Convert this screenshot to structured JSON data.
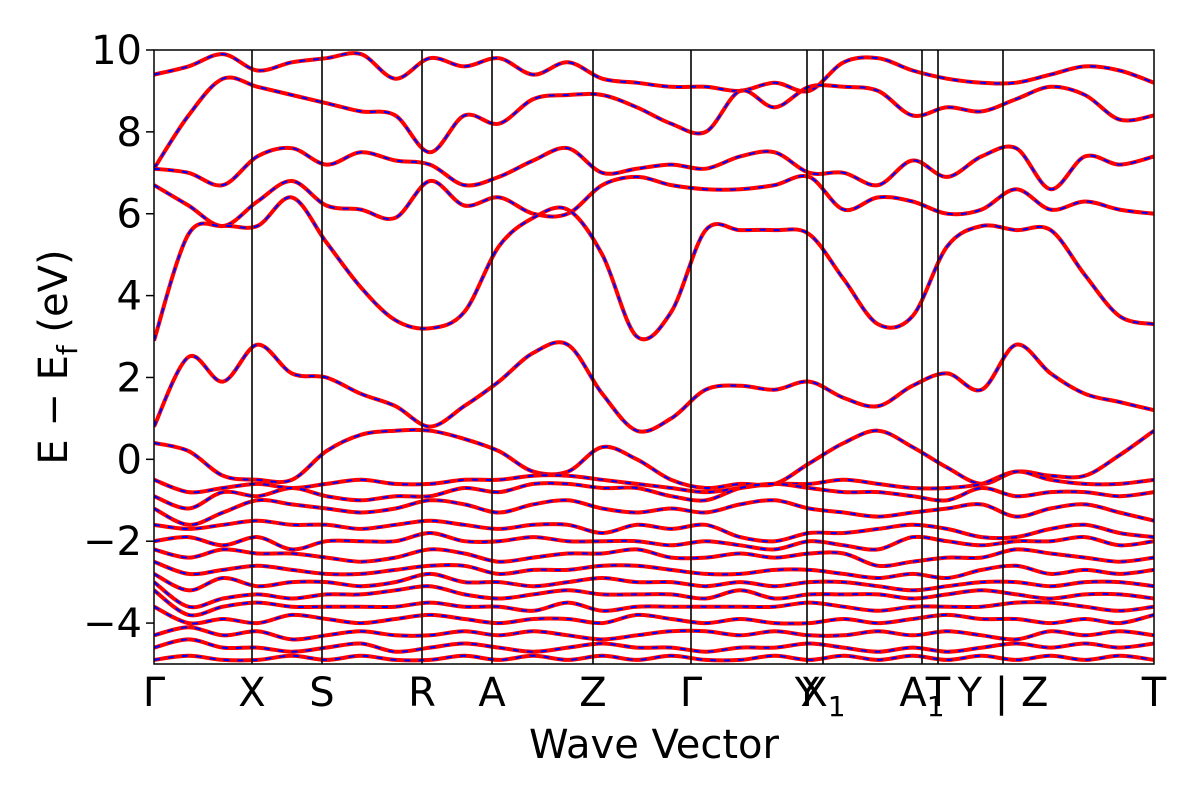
{
  "chart_data": {
    "type": "line",
    "xlabel": "Wave Vector",
    "ylabel": "E − E",
    "ylabel_sub": "f",
    "ylabel_unit": " (eV)",
    "ylim": [
      -5,
      10
    ],
    "yticks": [
      -4,
      -2,
      0,
      2,
      4,
      6,
      8,
      10
    ],
    "ytick_labels": [
      "−4",
      "−2",
      "0",
      "2",
      "4",
      "6",
      "8",
      "10"
    ],
    "grid": false,
    "legend": "none",
    "colors": {
      "band_solid": "#ff0000",
      "band_dashed": "#0000ff",
      "kpath_lines": "#000000"
    },
    "kpath": {
      "range": [
        0,
        1
      ],
      "points": [
        {
          "k": 0.0,
          "label": "Γ"
        },
        {
          "k": 0.098,
          "label": "X"
        },
        {
          "k": 0.168,
          "label": "S"
        },
        {
          "k": 0.268,
          "label": "R"
        },
        {
          "k": 0.338,
          "label": "A"
        },
        {
          "k": 0.439,
          "label": "Z"
        },
        {
          "k": 0.537,
          "label": "Γ"
        },
        {
          "k": 0.653,
          "label": "Y"
        },
        {
          "k": 0.669,
          "label": "X",
          "sub": "1"
        },
        {
          "k": 0.768,
          "label": "A",
          "sub": "1"
        },
        {
          "k": 0.784,
          "label": "T"
        },
        {
          "k": 0.849,
          "label": "Y | Z"
        },
        {
          "k": 1.0,
          "label": "T"
        }
      ],
      "break_after_index": 11
    },
    "series": [
      {
        "values": [
          9.4,
          9.6,
          9.9,
          9.5,
          9.7,
          9.8,
          9.9,
          9.3,
          9.8,
          9.6,
          9.8,
          9.4,
          9.7,
          9.3,
          9.2,
          9.1,
          9.1,
          9.0,
          9.2,
          9.0,
          9.7,
          9.8,
          9.5,
          9.3,
          9.2,
          9.2,
          9.4,
          9.6,
          9.5,
          9.2
        ]
      },
      {
        "values": [
          7.1,
          8.4,
          9.3,
          9.1,
          8.9,
          8.7,
          8.5,
          8.4,
          7.5,
          8.4,
          8.2,
          8.8,
          8.9,
          8.9,
          8.6,
          8.2,
          8.0,
          9.0,
          8.6,
          9.1,
          9.1,
          9.0,
          8.4,
          8.6,
          8.5,
          8.8,
          9.1,
          8.9,
          8.3,
          8.4
        ]
      },
      {
        "values": [
          7.1,
          7.0,
          6.7,
          7.4,
          7.6,
          7.2,
          7.5,
          7.3,
          7.2,
          6.7,
          6.9,
          7.3,
          7.6,
          7.0,
          7.1,
          7.2,
          7.1,
          7.4,
          7.5,
          7.0,
          7.0,
          6.7,
          7.3,
          6.9,
          7.4,
          7.6,
          6.6,
          7.4,
          7.2,
          7.4
        ]
      },
      {
        "values": [
          6.7,
          6.2,
          5.7,
          6.3,
          6.8,
          6.2,
          6.1,
          5.9,
          6.8,
          6.2,
          6.4,
          6.0,
          6.0,
          6.7,
          6.9,
          6.7,
          6.6,
          6.6,
          6.7,
          6.9,
          6.1,
          6.4,
          6.3,
          6.0,
          6.1,
          6.6,
          6.1,
          6.3,
          6.1,
          6.0
        ]
      },
      {
        "values": [
          2.9,
          5.5,
          5.7,
          5.7,
          6.4,
          5.3,
          4.2,
          3.4,
          3.2,
          3.6,
          5.2,
          5.9,
          6.1,
          5.0,
          3.0,
          3.6,
          5.6,
          5.6,
          5.6,
          5.5,
          4.4,
          3.3,
          3.5,
          5.2,
          5.7,
          5.6,
          5.6,
          4.5,
          3.5,
          3.3
        ]
      },
      {
        "values": [
          0.8,
          2.5,
          1.9,
          2.8,
          2.1,
          2.0,
          1.6,
          1.3,
          0.8,
          1.3,
          1.9,
          2.6,
          2.8,
          1.6,
          0.7,
          1.0,
          1.7,
          1.8,
          1.7,
          1.9,
          1.5,
          1.3,
          1.8,
          2.1,
          1.7,
          2.8,
          2.1,
          1.6,
          1.4,
          1.2
        ]
      },
      {
        "values": [
          0.4,
          0.2,
          -0.4,
          -0.5,
          -0.5,
          0.2,
          0.6,
          0.7,
          0.7,
          0.5,
          0.2,
          -0.3,
          -0.3,
          0.3,
          0.0,
          -0.5,
          -0.7,
          -0.6,
          -0.6,
          -0.1,
          0.4,
          0.7,
          0.3,
          -0.2,
          -0.6,
          -0.3,
          -0.4,
          -0.4,
          0.1,
          0.7
        ]
      },
      {
        "values": [
          -0.5,
          -0.8,
          -0.7,
          -0.6,
          -0.7,
          -0.6,
          -0.5,
          -0.6,
          -0.6,
          -0.5,
          -0.5,
          -0.4,
          -0.4,
          -0.5,
          -0.6,
          -0.7,
          -0.8,
          -0.7,
          -0.6,
          -0.6,
          -0.5,
          -0.6,
          -0.7,
          -0.7,
          -0.6,
          -0.3,
          -0.5,
          -0.6,
          -0.6,
          -0.5
        ]
      },
      {
        "values": [
          -0.9,
          -1.2,
          -0.8,
          -0.9,
          -0.7,
          -0.9,
          -1.0,
          -0.9,
          -0.9,
          -0.7,
          -0.8,
          -0.6,
          -0.6,
          -0.7,
          -0.7,
          -0.9,
          -1.0,
          -0.7,
          -0.6,
          -0.7,
          -0.8,
          -0.8,
          -0.9,
          -1.0,
          -0.7,
          -0.9,
          -0.8,
          -0.8,
          -0.9,
          -0.8
        ]
      },
      {
        "values": [
          -1.2,
          -1.6,
          -1.3,
          -1.0,
          -1.1,
          -1.2,
          -1.3,
          -1.2,
          -1.0,
          -1.1,
          -1.3,
          -1.1,
          -1.0,
          -1.2,
          -1.3,
          -1.2,
          -1.3,
          -1.1,
          -1.0,
          -1.2,
          -1.3,
          -1.4,
          -1.3,
          -1.2,
          -1.1,
          -1.4,
          -1.2,
          -1.1,
          -1.3,
          -1.5
        ]
      },
      {
        "values": [
          -1.6,
          -1.7,
          -1.6,
          -1.5,
          -1.6,
          -1.6,
          -1.7,
          -1.6,
          -1.5,
          -1.6,
          -1.7,
          -1.6,
          -1.6,
          -1.8,
          -1.6,
          -1.7,
          -1.6,
          -1.9,
          -2.0,
          -1.8,
          -1.8,
          -1.7,
          -1.6,
          -1.7,
          -1.9,
          -1.9,
          -1.7,
          -1.6,
          -1.8,
          -1.9
        ]
      },
      {
        "values": [
          -2.0,
          -1.9,
          -2.1,
          -1.9,
          -2.2,
          -2.0,
          -2.0,
          -2.0,
          -1.8,
          -2.0,
          -2.0,
          -1.9,
          -2.0,
          -2.0,
          -2.0,
          -2.1,
          -2.0,
          -2.1,
          -2.2,
          -2.0,
          -2.1,
          -2.2,
          -1.9,
          -2.0,
          -2.1,
          -2.0,
          -2.0,
          -1.9,
          -2.1,
          -2.0
        ]
      },
      {
        "values": [
          -2.2,
          -2.4,
          -2.2,
          -2.3,
          -2.3,
          -2.4,
          -2.5,
          -2.4,
          -2.2,
          -2.3,
          -2.5,
          -2.4,
          -2.3,
          -2.3,
          -2.2,
          -2.4,
          -2.4,
          -2.3,
          -2.4,
          -2.3,
          -2.3,
          -2.6,
          -2.5,
          -2.4,
          -2.4,
          -2.2,
          -2.3,
          -2.4,
          -2.5,
          -2.4
        ]
      },
      {
        "values": [
          -2.5,
          -2.8,
          -2.7,
          -2.6,
          -2.7,
          -2.8,
          -2.8,
          -2.7,
          -2.6,
          -2.6,
          -2.8,
          -2.7,
          -2.7,
          -2.6,
          -2.6,
          -2.7,
          -2.8,
          -2.8,
          -2.7,
          -2.7,
          -2.8,
          -2.9,
          -2.8,
          -2.9,
          -2.7,
          -2.6,
          -2.8,
          -2.7,
          -2.8,
          -2.7
        ]
      },
      {
        "values": [
          -2.8,
          -3.2,
          -2.9,
          -3.1,
          -3.0,
          -3.0,
          -3.1,
          -3.0,
          -2.8,
          -3.0,
          -3.0,
          -3.1,
          -3.0,
          -2.9,
          -3.0,
          -3.0,
          -3.1,
          -3.0,
          -3.1,
          -3.0,
          -3.0,
          -3.1,
          -3.2,
          -3.1,
          -3.0,
          -3.0,
          -3.1,
          -3.0,
          -3.0,
          -3.1
        ]
      },
      {
        "values": [
          -3.0,
          -3.6,
          -3.4,
          -3.3,
          -3.4,
          -3.3,
          -3.3,
          -3.2,
          -3.1,
          -3.3,
          -3.4,
          -3.3,
          -3.2,
          -3.3,
          -3.3,
          -3.3,
          -3.4,
          -3.2,
          -3.4,
          -3.3,
          -3.3,
          -3.3,
          -3.4,
          -3.3,
          -3.2,
          -3.3,
          -3.4,
          -3.3,
          -3.3,
          -3.4
        ]
      },
      {
        "values": [
          -3.2,
          -3.8,
          -3.6,
          -3.5,
          -3.6,
          -3.6,
          -3.6,
          -3.6,
          -3.5,
          -3.6,
          -3.6,
          -3.7,
          -3.5,
          -3.7,
          -3.6,
          -3.6,
          -3.6,
          -3.6,
          -3.6,
          -3.5,
          -3.6,
          -3.7,
          -3.6,
          -3.6,
          -3.6,
          -3.5,
          -3.5,
          -3.6,
          -3.7,
          -3.6
        ]
      },
      {
        "values": [
          -3.6,
          -4.0,
          -3.9,
          -4.0,
          -3.8,
          -3.9,
          -4.0,
          -3.9,
          -3.8,
          -3.9,
          -4.0,
          -3.9,
          -3.9,
          -4.0,
          -3.8,
          -3.9,
          -4.0,
          -3.9,
          -4.0,
          -4.0,
          -3.9,
          -4.0,
          -3.9,
          -3.8,
          -3.9,
          -3.9,
          -4.0,
          -3.9,
          -4.0,
          -3.8
        ]
      },
      {
        "values": [
          -4.3,
          -4.1,
          -4.3,
          -4.2,
          -4.4,
          -4.3,
          -4.2,
          -4.3,
          -4.3,
          -4.2,
          -4.3,
          -4.2,
          -4.3,
          -4.4,
          -4.3,
          -4.2,
          -4.2,
          -4.3,
          -4.2,
          -4.3,
          -4.3,
          -4.2,
          -4.3,
          -4.2,
          -4.3,
          -4.4,
          -4.2,
          -4.3,
          -4.2,
          -4.3
        ]
      },
      {
        "values": [
          -4.6,
          -4.4,
          -4.6,
          -4.6,
          -4.7,
          -4.6,
          -4.5,
          -4.7,
          -4.6,
          -4.5,
          -4.6,
          -4.7,
          -4.6,
          -4.5,
          -4.6,
          -4.6,
          -4.7,
          -4.6,
          -4.6,
          -4.5,
          -4.6,
          -4.7,
          -4.6,
          -4.7,
          -4.6,
          -4.5,
          -4.6,
          -4.5,
          -4.6,
          -4.5
        ]
      },
      {
        "values": [
          -4.9,
          -4.8,
          -4.9,
          -4.9,
          -4.8,
          -4.9,
          -4.8,
          -4.9,
          -4.9,
          -4.8,
          -4.9,
          -4.8,
          -4.9,
          -4.8,
          -4.9,
          -4.8,
          -4.9,
          -4.9,
          -4.8,
          -4.9,
          -4.8,
          -4.9,
          -4.8,
          -4.9,
          -4.8,
          -4.9,
          -4.8,
          -4.9,
          -4.8,
          -4.9
        ]
      }
    ]
  }
}
